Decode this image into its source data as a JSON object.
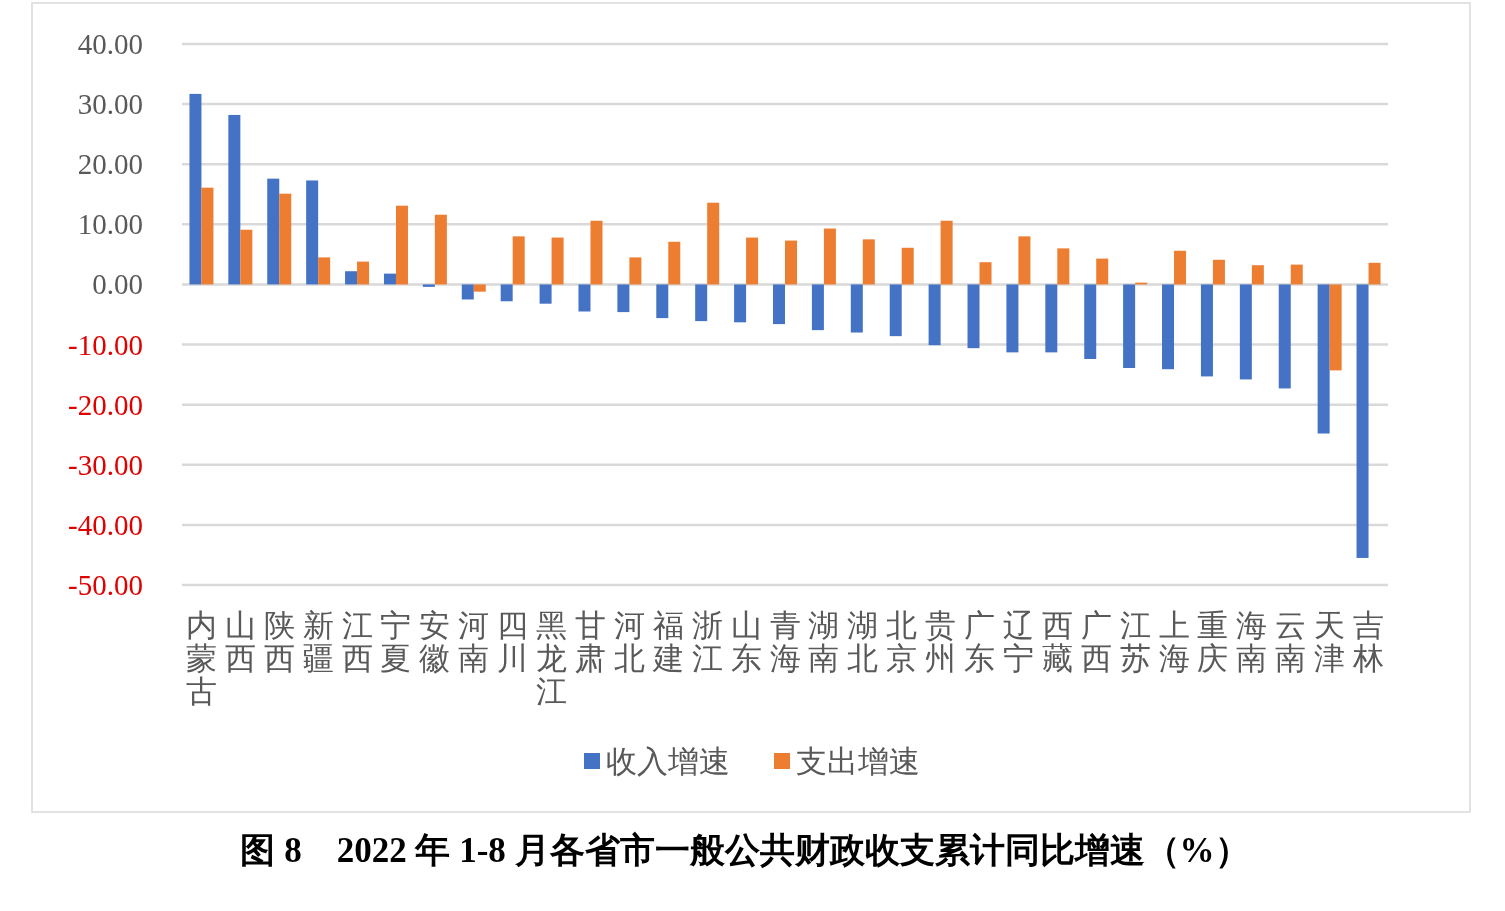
{
  "chart_data": {
    "type": "bar",
    "title": "图 8　2022 年 1-8 月各省市一般公共财政收支累计同比增速（%）",
    "categories": [
      "内蒙古",
      "山西",
      "陕西",
      "新疆",
      "江西",
      "宁夏",
      "安徽",
      "河南",
      "四川",
      "黑龙江",
      "甘肃",
      "河北",
      "福建",
      "浙江",
      "山东",
      "青海",
      "湖南",
      "湖北",
      "北京",
      "贵州",
      "广东",
      "辽宁",
      "西藏",
      "广西",
      "江苏",
      "上海",
      "重庆",
      "海南",
      "云南",
      "天津",
      "吉林"
    ],
    "series": [
      {
        "name": "收入增速",
        "color": "#4472c4",
        "values": [
          31.7,
          28.2,
          17.6,
          17.3,
          2.2,
          1.8,
          -0.4,
          -2.5,
          -2.8,
          -3.2,
          -4.5,
          -4.6,
          -5.6,
          -6.1,
          -6.3,
          -6.6,
          -7.6,
          -8.0,
          -8.6,
          -10.1,
          -10.6,
          -11.3,
          -11.3,
          -12.4,
          -13.9,
          -14.1,
          -15.3,
          -15.8,
          -17.3,
          -24.8,
          -45.5
        ]
      },
      {
        "name": "支出增速",
        "color": "#ed7d31",
        "values": [
          16.1,
          9.1,
          15.1,
          4.5,
          3.8,
          13.1,
          11.6,
          -1.2,
          8.0,
          7.8,
          10.6,
          4.5,
          7.1,
          13.6,
          7.8,
          7.3,
          9.3,
          7.5,
          6.1,
          10.6,
          3.7,
          8.0,
          6.0,
          4.3,
          0.3,
          5.6,
          4.1,
          3.2,
          3.3,
          -14.3,
          3.6
        ]
      }
    ],
    "ylim": [
      -50,
      40
    ],
    "yticks": [
      {
        "value": 40,
        "label": "40.00"
      },
      {
        "value": 30,
        "label": "30.00"
      },
      {
        "value": 20,
        "label": "20.00"
      },
      {
        "value": 10,
        "label": "10.00"
      },
      {
        "value": 0,
        "label": "0.00"
      },
      {
        "value": -10,
        "label": "-10.00"
      },
      {
        "value": -20,
        "label": "-20.00"
      },
      {
        "value": -30,
        "label": "-30.00"
      },
      {
        "value": -40,
        "label": "-40.00"
      },
      {
        "value": -50,
        "label": "-50.00"
      }
    ],
    "grid": "y",
    "legend": "bottom"
  }
}
